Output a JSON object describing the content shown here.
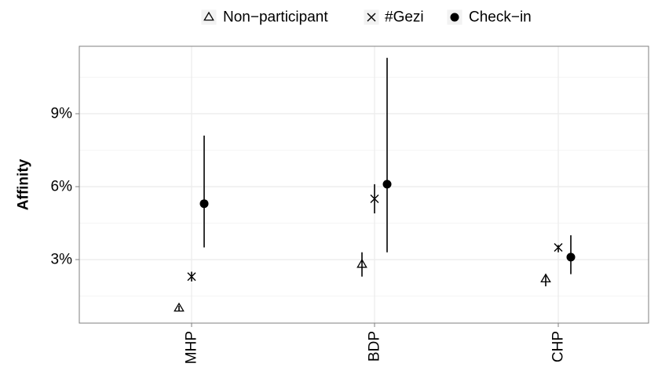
{
  "chart_data": {
    "type": "scatter",
    "subtype": "point-range (dodged by group)",
    "title": "",
    "xlabel": "",
    "ylabel": "Affinity",
    "categories": [
      "MHP",
      "BDP",
      "CHP"
    ],
    "y_unit": "%",
    "ylim": [
      0.0,
      11.3
    ],
    "y_ticks": [
      3,
      6,
      9
    ],
    "y_tick_labels": [
      "3%",
      "6%",
      "9%"
    ],
    "x_tick_label_rotation": "vertical",
    "grid": true,
    "legend_position": "top",
    "series": [
      {
        "name": "Non−participant",
        "marker": "triangle-open",
        "values": [
          1.0,
          2.8,
          2.2
        ],
        "lower": [
          0.9,
          2.3,
          1.9
        ],
        "upper": [
          1.1,
          3.3,
          2.4
        ]
      },
      {
        "name": "#Gezi",
        "marker": "cross",
        "values": [
          2.3,
          5.5,
          3.5
        ],
        "lower": [
          2.1,
          4.9,
          3.3
        ],
        "upper": [
          2.5,
          6.1,
          3.6
        ]
      },
      {
        "name": "Check−in",
        "marker": "filled-circle",
        "values": [
          5.3,
          6.1,
          3.1
        ],
        "lower": [
          3.5,
          3.3,
          2.4
        ],
        "upper": [
          8.1,
          11.3,
          4.0
        ]
      }
    ]
  },
  "colors": {
    "panel_border": "#7f7f7f",
    "major_grid": "#ebebeb",
    "minor_grid": "#f5f5f5",
    "ink": "#000000",
    "axis_text": "#000000"
  }
}
